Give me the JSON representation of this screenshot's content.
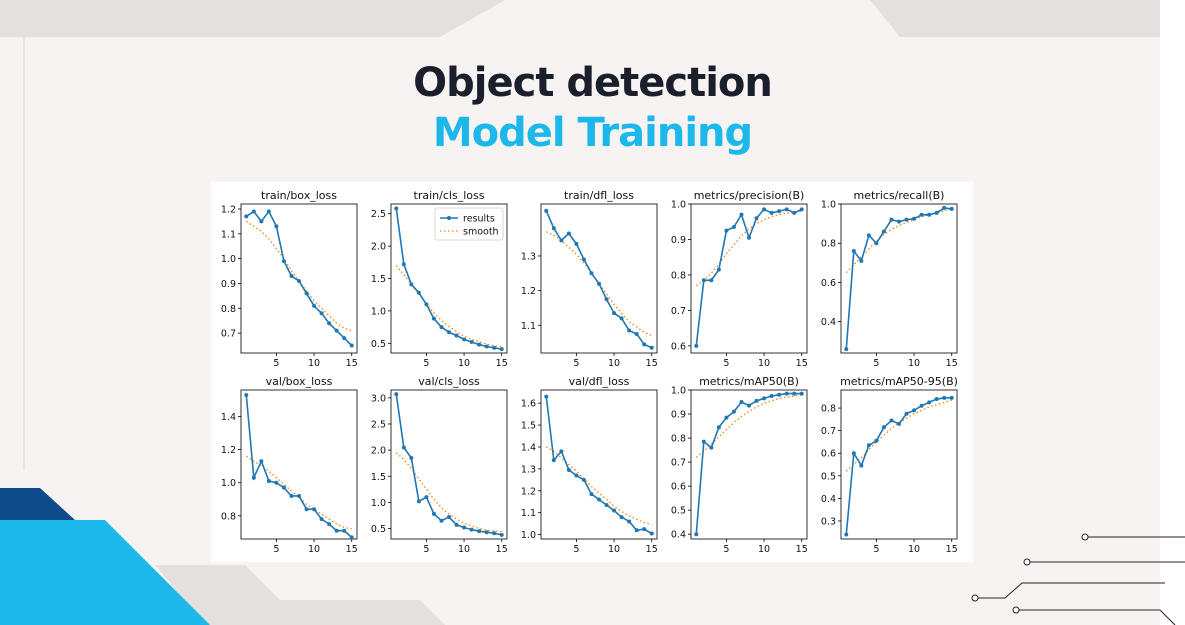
{
  "header": {
    "title": "Object detection",
    "subtitle": "Model Training"
  },
  "colors": {
    "accent_blue": "#1cb8ea",
    "dark_blue": "#0f4c8c",
    "title_dark": "#1b1f2b",
    "results_line": "#1f77b4",
    "smooth_line": "#ff7f0e"
  },
  "chart_data": [
    {
      "type": "line",
      "title": "train/box_loss",
      "x": [
        1,
        2,
        3,
        4,
        5,
        6,
        7,
        8,
        9,
        10,
        11,
        12,
        13,
        14,
        15
      ],
      "ylim": [
        0.62,
        1.22
      ],
      "xticks": [
        5,
        10,
        15
      ],
      "yticks": [
        0.7,
        0.8,
        0.9,
        1.0,
        1.1,
        1.2
      ],
      "yticklabels": [
        "0.7",
        "0.8",
        "0.9",
        "1.0",
        "1.1",
        "1.2"
      ],
      "series": [
        {
          "name": "results",
          "values": [
            1.17,
            1.19,
            1.15,
            1.19,
            1.13,
            0.99,
            0.93,
            0.91,
            0.86,
            0.81,
            0.78,
            0.74,
            0.71,
            0.68,
            0.65
          ]
        },
        {
          "name": "smooth",
          "values": [
            1.15,
            1.13,
            1.11,
            1.08,
            1.04,
            1.0,
            0.95,
            0.91,
            0.87,
            0.83,
            0.8,
            0.77,
            0.74,
            0.72,
            0.71
          ]
        }
      ]
    },
    {
      "type": "line",
      "title": "train/cls_loss",
      "x": [
        1,
        2,
        3,
        4,
        5,
        6,
        7,
        8,
        9,
        10,
        11,
        12,
        13,
        14,
        15
      ],
      "ylim": [
        0.35,
        2.65
      ],
      "xticks": [
        5,
        10,
        15
      ],
      "yticks": [
        0.5,
        1.0,
        1.5,
        2.0,
        2.5
      ],
      "yticklabels": [
        "0.5",
        "1.0",
        "1.5",
        "2.0",
        "2.5"
      ],
      "legend": "top-right",
      "series": [
        {
          "name": "results",
          "values": [
            2.58,
            1.72,
            1.41,
            1.28,
            1.1,
            0.88,
            0.75,
            0.67,
            0.62,
            0.56,
            0.52,
            0.48,
            0.45,
            0.43,
            0.41
          ]
        },
        {
          "name": "smooth",
          "values": [
            1.7,
            1.56,
            1.41,
            1.26,
            1.11,
            0.97,
            0.85,
            0.76,
            0.68,
            0.61,
            0.56,
            0.52,
            0.49,
            0.46,
            0.45
          ]
        }
      ]
    },
    {
      "type": "line",
      "title": "train/dfl_loss",
      "x": [
        1,
        2,
        3,
        4,
        5,
        6,
        7,
        8,
        9,
        10,
        11,
        12,
        13,
        14,
        15
      ],
      "ylim": [
        1.02,
        1.45
      ],
      "xticks": [
        5,
        10,
        15
      ],
      "yticks": [
        1.1,
        1.2,
        1.3
      ],
      "yticklabels": [
        "1.1",
        "1.2",
        "1.3"
      ],
      "series": [
        {
          "name": "results",
          "values": [
            1.43,
            1.38,
            1.345,
            1.365,
            1.335,
            1.29,
            1.25,
            1.22,
            1.175,
            1.135,
            1.12,
            1.085,
            1.075,
            1.045,
            1.035
          ]
        },
        {
          "name": "smooth",
          "values": [
            1.37,
            1.36,
            1.345,
            1.325,
            1.305,
            1.28,
            1.25,
            1.22,
            1.19,
            1.16,
            1.135,
            1.11,
            1.095,
            1.08,
            1.07
          ]
        }
      ]
    },
    {
      "type": "line",
      "title": "metrics/precision(B)",
      "x": [
        1,
        2,
        3,
        4,
        5,
        6,
        7,
        8,
        9,
        10,
        11,
        12,
        13,
        14,
        15
      ],
      "ylim": [
        0.58,
        1.0
      ],
      "xticks": [
        5,
        10,
        15
      ],
      "yticks": [
        0.6,
        0.7,
        0.8,
        0.9,
        1.0
      ],
      "yticklabels": [
        "0.6",
        "0.7",
        "0.8",
        "0.9",
        "1.0"
      ],
      "series": [
        {
          "name": "results",
          "values": [
            0.6,
            0.785,
            0.785,
            0.815,
            0.925,
            0.935,
            0.97,
            0.905,
            0.96,
            0.985,
            0.975,
            0.98,
            0.985,
            0.975,
            0.985
          ]
        },
        {
          "name": "smooth",
          "values": [
            0.77,
            0.785,
            0.805,
            0.83,
            0.86,
            0.885,
            0.91,
            0.93,
            0.945,
            0.955,
            0.965,
            0.97,
            0.975,
            0.975,
            0.98
          ]
        }
      ]
    },
    {
      "type": "line",
      "title": "metrics/recall(B)",
      "x": [
        1,
        2,
        3,
        4,
        5,
        6,
        7,
        8,
        9,
        10,
        11,
        12,
        13,
        14,
        15
      ],
      "ylim": [
        0.24,
        1.0
      ],
      "xticks": [
        5,
        10,
        15
      ],
      "yticks": [
        0.4,
        0.6,
        0.8,
        1.0
      ],
      "yticklabels": [
        "0.4",
        "0.6",
        "0.8",
        "1.0"
      ],
      "series": [
        {
          "name": "results",
          "values": [
            0.26,
            0.76,
            0.71,
            0.84,
            0.8,
            0.86,
            0.92,
            0.91,
            0.92,
            0.925,
            0.945,
            0.945,
            0.955,
            0.98,
            0.975
          ]
        },
        {
          "name": "smooth",
          "values": [
            0.65,
            0.69,
            0.73,
            0.77,
            0.81,
            0.845,
            0.87,
            0.89,
            0.905,
            0.92,
            0.935,
            0.945,
            0.955,
            0.965,
            0.975
          ]
        }
      ]
    },
    {
      "type": "line",
      "title": "val/box_loss",
      "x": [
        1,
        2,
        3,
        4,
        5,
        6,
        7,
        8,
        9,
        10,
        11,
        12,
        13,
        14,
        15
      ],
      "ylim": [
        0.66,
        1.56
      ],
      "xticks": [
        5,
        10,
        15
      ],
      "yticks": [
        0.8,
        1.0,
        1.2,
        1.4
      ],
      "yticklabels": [
        "0.8",
        "1.0",
        "1.2",
        "1.4"
      ],
      "series": [
        {
          "name": "results",
          "values": [
            1.53,
            1.03,
            1.13,
            1.01,
            1.0,
            0.97,
            0.92,
            0.92,
            0.84,
            0.84,
            0.78,
            0.75,
            0.71,
            0.71,
            0.67
          ]
        },
        {
          "name": "smooth",
          "values": [
            1.16,
            1.13,
            1.1,
            1.07,
            1.03,
            0.99,
            0.95,
            0.91,
            0.87,
            0.84,
            0.81,
            0.78,
            0.75,
            0.73,
            0.72
          ]
        }
      ]
    },
    {
      "type": "line",
      "title": "val/cls_loss",
      "x": [
        1,
        2,
        3,
        4,
        5,
        6,
        7,
        8,
        9,
        10,
        11,
        12,
        13,
        14,
        15
      ],
      "ylim": [
        0.3,
        3.15
      ],
      "xticks": [
        5,
        10,
        15
      ],
      "yticks": [
        0.5,
        1.0,
        1.5,
        2.0,
        2.5,
        3.0
      ],
      "yticklabels": [
        "0.5",
        "1.0",
        "1.5",
        "2.0",
        "2.5",
        "3.0"
      ],
      "series": [
        {
          "name": "results",
          "values": [
            3.07,
            2.05,
            1.85,
            1.02,
            1.1,
            0.78,
            0.65,
            0.72,
            0.57,
            0.52,
            0.48,
            0.45,
            0.43,
            0.41,
            0.38
          ]
        },
        {
          "name": "smooth",
          "values": [
            1.95,
            1.82,
            1.65,
            1.45,
            1.25,
            1.06,
            0.9,
            0.78,
            0.68,
            0.6,
            0.55,
            0.5,
            0.47,
            0.45,
            0.44
          ]
        }
      ]
    },
    {
      "type": "line",
      "title": "val/dfl_loss",
      "x": [
        1,
        2,
        3,
        4,
        5,
        6,
        7,
        8,
        9,
        10,
        11,
        12,
        13,
        14,
        15
      ],
      "ylim": [
        0.98,
        1.66
      ],
      "xticks": [
        5,
        10,
        15
      ],
      "yticks": [
        1.0,
        1.1,
        1.2,
        1.3,
        1.4,
        1.5,
        1.6
      ],
      "yticklabels": [
        "1.0",
        "1.1",
        "1.2",
        "1.3",
        "1.4",
        "1.5",
        "1.6"
      ],
      "series": [
        {
          "name": "results",
          "values": [
            1.63,
            1.34,
            1.38,
            1.295,
            1.27,
            1.25,
            1.185,
            1.16,
            1.135,
            1.11,
            1.08,
            1.06,
            1.02,
            1.025,
            1.005
          ]
        },
        {
          "name": "smooth",
          "values": [
            1.4,
            1.38,
            1.35,
            1.32,
            1.29,
            1.255,
            1.22,
            1.19,
            1.16,
            1.13,
            1.105,
            1.085,
            1.07,
            1.055,
            1.045
          ]
        }
      ]
    },
    {
      "type": "line",
      "title": "metrics/mAP50(B)",
      "x": [
        1,
        2,
        3,
        4,
        5,
        6,
        7,
        8,
        9,
        10,
        11,
        12,
        13,
        14,
        15
      ],
      "ylim": [
        0.38,
        1.0
      ],
      "xticks": [
        5,
        10,
        15
      ],
      "yticks": [
        0.4,
        0.5,
        0.6,
        0.7,
        0.8,
        0.9,
        1.0
      ],
      "yticklabels": [
        "0.4",
        "0.5",
        "0.6",
        "0.7",
        "0.8",
        "0.9",
        "1.0"
      ],
      "series": [
        {
          "name": "results",
          "values": [
            0.4,
            0.785,
            0.76,
            0.845,
            0.885,
            0.91,
            0.95,
            0.935,
            0.955,
            0.965,
            0.975,
            0.98,
            0.985,
            0.985,
            0.985
          ]
        },
        {
          "name": "smooth",
          "values": [
            0.72,
            0.745,
            0.775,
            0.805,
            0.835,
            0.865,
            0.89,
            0.91,
            0.93,
            0.945,
            0.955,
            0.965,
            0.97,
            0.975,
            0.98
          ]
        }
      ]
    },
    {
      "type": "line",
      "title": "metrics/mAP50-95(B)",
      "x": [
        1,
        2,
        3,
        4,
        5,
        6,
        7,
        8,
        9,
        10,
        11,
        12,
        13,
        14,
        15
      ],
      "ylim": [
        0.22,
        0.88
      ],
      "xticks": [
        5,
        10,
        15
      ],
      "yticks": [
        0.3,
        0.4,
        0.5,
        0.6,
        0.7,
        0.8
      ],
      "yticklabels": [
        "0.3",
        "0.4",
        "0.5",
        "0.6",
        "0.7",
        "0.8"
      ],
      "series": [
        {
          "name": "results",
          "values": [
            0.24,
            0.6,
            0.545,
            0.635,
            0.655,
            0.715,
            0.745,
            0.73,
            0.775,
            0.79,
            0.81,
            0.825,
            0.84,
            0.845,
            0.845
          ]
        },
        {
          "name": "smooth",
          "values": [
            0.52,
            0.55,
            0.58,
            0.615,
            0.65,
            0.68,
            0.71,
            0.735,
            0.755,
            0.775,
            0.79,
            0.805,
            0.815,
            0.825,
            0.835
          ]
        }
      ]
    }
  ]
}
